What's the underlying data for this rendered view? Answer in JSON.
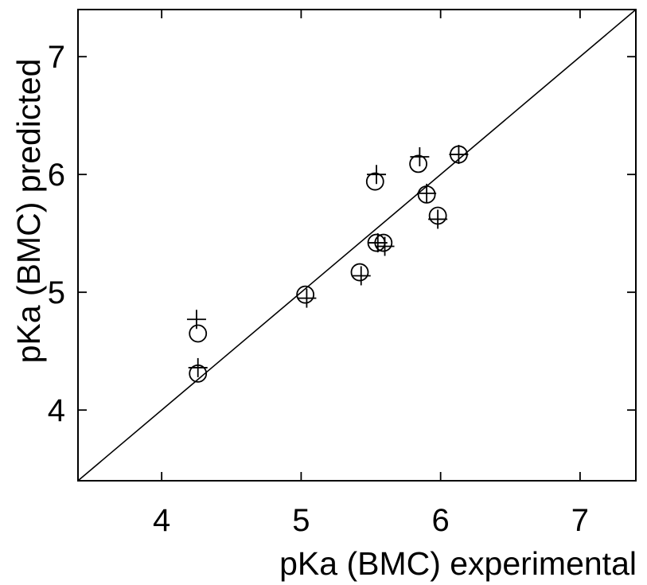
{
  "chart_data": {
    "type": "scatter",
    "xlabel": "pKa (BMC) experimental",
    "ylabel": "pKa (BMC) predicted",
    "xlim": [
      3.4,
      7.4
    ],
    "ylim": [
      3.4,
      7.4
    ],
    "xticks": [
      4,
      5,
      6,
      7
    ],
    "yticks": [
      4,
      5,
      6,
      7
    ],
    "x_tick_labels": [
      "4",
      "5",
      "6",
      "7"
    ],
    "y_tick_labels": [
      "4",
      "5",
      "6",
      "7"
    ],
    "grid": false,
    "legend": "none",
    "reference_line": {
      "type": "identity",
      "x": [
        3.4,
        7.4
      ],
      "y": [
        3.4,
        7.4
      ]
    },
    "series": [
      {
        "marker": "circle",
        "x": [
          4.26,
          4.26,
          5.03,
          5.42,
          5.54,
          5.59,
          5.53,
          5.84,
          5.9,
          5.98,
          6.13
        ],
        "y": [
          4.65,
          4.31,
          4.98,
          5.17,
          5.42,
          5.42,
          5.94,
          6.09,
          5.83,
          5.65,
          6.17
        ]
      },
      {
        "marker": "plus",
        "x": [
          4.25,
          4.26,
          5.04,
          5.43,
          5.55,
          5.6,
          5.54,
          5.85,
          5.9,
          5.98,
          6.13
        ],
        "y": [
          4.77,
          4.36,
          4.95,
          5.14,
          5.42,
          5.39,
          6.0,
          6.15,
          5.84,
          5.62,
          6.17
        ]
      }
    ],
    "colors": {
      "marks": "#000000",
      "background": "#ffffff"
    }
  }
}
